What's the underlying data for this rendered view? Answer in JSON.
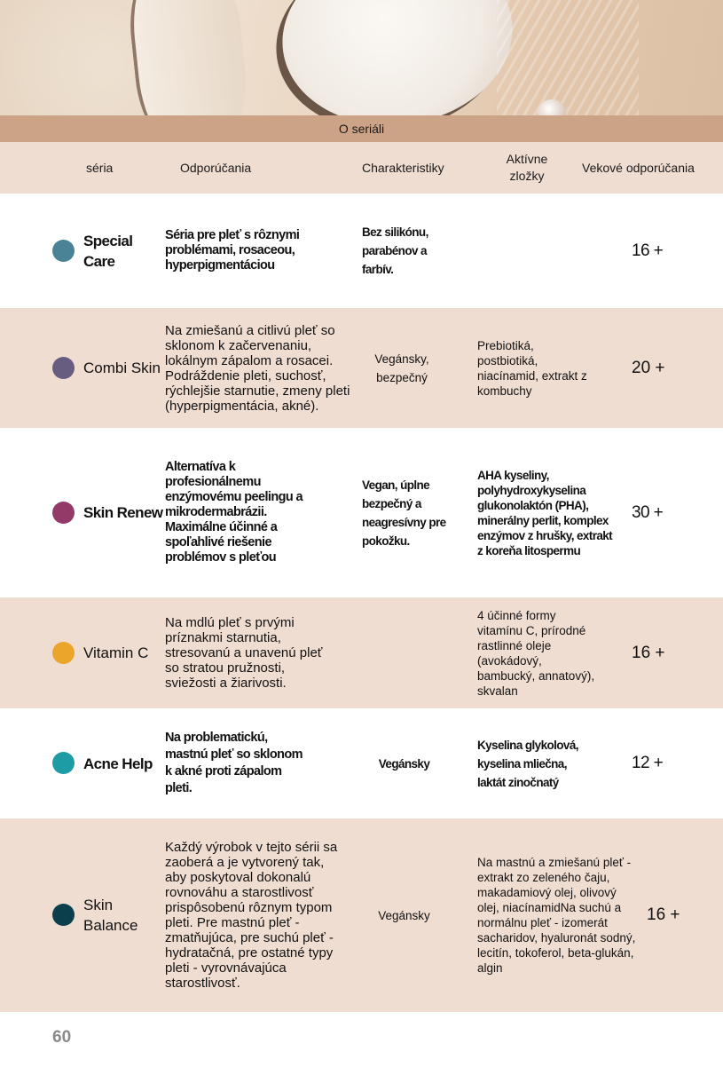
{
  "section_title": "O seriáli",
  "columns": [
    "séria",
    "Odporúčania",
    "Charakteristiky",
    "Aktívne zložky",
    "Vekové odporúčania"
  ],
  "rows": [
    {
      "name": "Special Care",
      "color": "#4a8395",
      "recommendation": "Séria pre pleť s rôznymi problémami, rosaceou, hyperpigmentáciou",
      "characteristics": "Bez silikónu, parabénov a farbív.",
      "active": "",
      "age": "16 +"
    },
    {
      "name": "Combi Skin",
      "color": "#665d80",
      "recommendation": "Na zmiešanú a citlivú pleť so sklonom k začervenaniu, lokálnym zápalom a rosacei. Podráždenie pleti, suchosť, rýchlejšie starnutie, zmeny pleti (hyperpigmentácia, akné).",
      "characteristics": "Vegánsky, bezpečný",
      "active": "Prebiotiká, postbiotiká, niacínamid, extrakt z kombuchy",
      "age": "20 +"
    },
    {
      "name": "Skin Renew",
      "color": "#923a68",
      "recommendation": "Alternatíva k profesionálnemu enzýmovému peelingu a mikrodermabrázii. Maximálne účinné a spoľahlivé riešenie problémov s pleťou",
      "characteristics": "Vegan, úplne bezpečný a neagresívny pre pokožku.",
      "active": "AHA kyseliny, polyhydroxykyselina glukonolaktón (PHA), minerálny perlit, komplex enzýmov z hrušky, extrakt z koreňa litospermu",
      "age": "30 +"
    },
    {
      "name": "Vitamin C",
      "color": "#eba52b",
      "recommendation": "Na mdlú pleť s prvými príznakmi starnutia, stresovanú a unavenú pleť so stratou pružnosti, sviežosti a žiarivosti.",
      "characteristics": "",
      "active": "4 účinné formy vitamínu C, prírodné rastlinné oleje (avokádový, bambucký, annatový), skvalan",
      "age": "16 +"
    },
    {
      "name": "Acne Help",
      "color": "#1d9ca5",
      "recommendation": "Na problematickú, mastnú pleť so sklonom k akné proti zápalom pleti.",
      "characteristics": "Vegánsky",
      "active": "Kyselina glykolová, kyselina mliečna, laktát zinočnatý",
      "age": "12 +"
    },
    {
      "name": "Skin Balance",
      "color": "#0b3f4b",
      "recommendation": "Každý výrobok v tejto sérii sa zaoberá a je vytvorený tak, aby poskytoval dokonalú rovnováhu a starostlivosť prispôsobenú rôznym typom pleti. Pre mastnú pleť - zmatňujúca, pre suchú pleť - hydratačná, pre ostatné typy pleti - vyrovnávajúca starostlivosť.",
      "characteristics": "Vegánsky",
      "active": "Na mastnú a zmiešanú pleť - extrakt zo zeleného čaju, makadamiový olej, olivový olej, niacínamidNa suchú a normálnu pleť - izomerát sacharidov, hyaluronát sodný, lecitín, tokoferol, beta-glukán, algin",
      "age": "16 +"
    }
  ],
  "page_number": "60"
}
